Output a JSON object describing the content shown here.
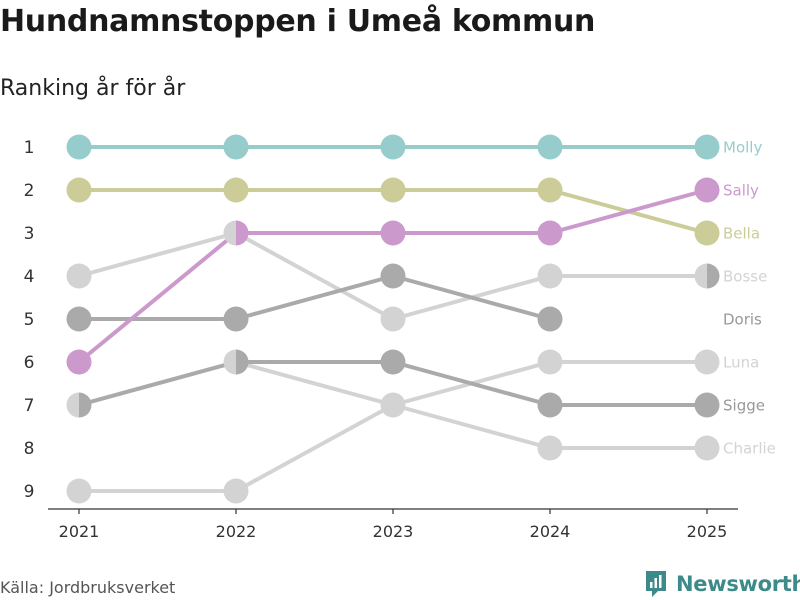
{
  "title": "Hundnamnstoppen i Umeå kommun",
  "subtitle": "Ranking år för år",
  "source": "Källa: Jordbruksverket",
  "brand": {
    "name": "Newsworthy",
    "color": "#3d8a8a"
  },
  "chart_data": {
    "type": "line",
    "title": "Hundnamnstoppen i Umeå kommun",
    "subtitle": "Ranking år för år",
    "x": [
      2021,
      2022,
      2023,
      2024,
      2025
    ],
    "x_labels": [
      "2021",
      "2022",
      "2023",
      "2024",
      "2025"
    ],
    "y_labels": [
      "1",
      "2",
      "3",
      "4",
      "5",
      "6",
      "7",
      "8",
      "9"
    ],
    "ylim": [
      1,
      9
    ],
    "y_reversed": true,
    "legend": "end-labels",
    "series": [
      {
        "name": "Charlie",
        "values": [
          9,
          9,
          7,
          8,
          8
        ],
        "color": "#d3d3d3",
        "label": "Charlie"
      },
      {
        "name": "Luna",
        "values": [
          7,
          6,
          7,
          6,
          6
        ],
        "color": "#d3d3d3",
        "label": "Luna"
      },
      {
        "name": "Bosse",
        "values": [
          4,
          3,
          5,
          4,
          4
        ],
        "color": "#d3d3d3",
        "label": "Bosse"
      },
      {
        "name": "Doris",
        "values": [
          7,
          6,
          null,
          null,
          4
        ],
        "color": "#aaaaaa",
        "label": "Doris"
      },
      {
        "name": "Sigge",
        "values": [
          5,
          5,
          4,
          5,
          null
        ],
        "color": "#aaaaaa",
        "label": ""
      },
      {
        "name": "Sigge-b",
        "values": [
          null,
          6,
          6,
          7,
          7
        ],
        "color": "#aaaaaa",
        "label": "Sigge"
      },
      {
        "name": "Molly",
        "values": [
          1,
          1,
          1,
          1,
          1
        ],
        "color": "#97cccc",
        "label": "Molly"
      },
      {
        "name": "Bella",
        "values": [
          2,
          2,
          2,
          2,
          3
        ],
        "color": "#cccc99",
        "label": "Bella"
      },
      {
        "name": "Sally",
        "values": [
          6,
          3,
          3,
          3,
          2
        ],
        "color": "#cc99cc",
        "label": "Sally"
      }
    ],
    "end_labels": [
      {
        "name": "Molly",
        "rank": 1,
        "color": "#97cccc"
      },
      {
        "name": "Sally",
        "rank": 2,
        "color": "#cc99cc"
      },
      {
        "name": "Bella",
        "rank": 3,
        "color": "#cccc99"
      },
      {
        "name": "Bosse",
        "rank": 4,
        "color": "#d3d3d3"
      },
      {
        "name": "Doris",
        "rank": 5,
        "color": "#999999"
      },
      {
        "name": "Luna",
        "rank": 6,
        "color": "#d3d3d3"
      },
      {
        "name": "Sigge",
        "rank": 7,
        "color": "#999999"
      },
      {
        "name": "Charlie",
        "rank": 8,
        "color": "#d3d3d3"
      }
    ]
  }
}
